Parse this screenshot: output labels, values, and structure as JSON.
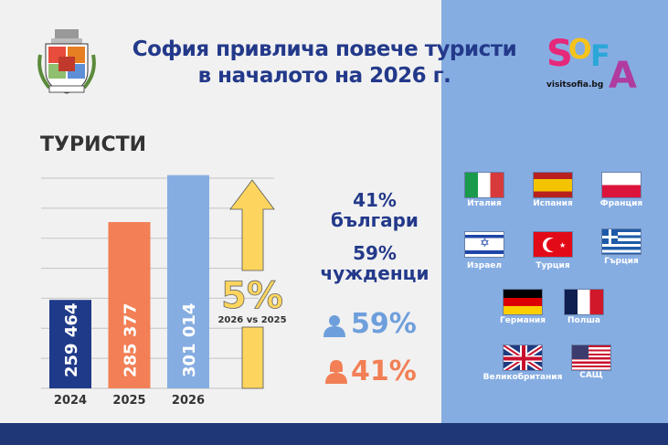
{
  "header": {
    "title_line1": "София привлича повече туристи",
    "title_line2": "в началото на 2026 г.",
    "logo_text": "SOFIA",
    "logo_url": "visitsofia.bg"
  },
  "section_title": "ТУРИСТИ",
  "chart_data": {
    "type": "bar",
    "categories": [
      "2024",
      "2025",
      "2026"
    ],
    "values": [
      259464,
      285377,
      301014
    ],
    "value_labels": [
      "259 464",
      "285 377",
      "301 014"
    ],
    "colors": [
      "#1f3a88",
      "#f27f55",
      "#86ade2"
    ],
    "ylim": [
      230000,
      300000
    ],
    "grid": true,
    "title": "",
    "xlabel": "",
    "ylabel": ""
  },
  "growth": {
    "value": "5%",
    "label": "2026 vs 2025",
    "color": "#fdd55e"
  },
  "stats": {
    "bulgarians_pct": "41%",
    "bulgarians_label": "българи",
    "foreigners_pct": "59%",
    "foreigners_label": "чужденци",
    "male_pct": "59%",
    "female_pct": "41%",
    "male_color": "#6e9fdc",
    "female_color": "#f27f55"
  },
  "countries": [
    "Италия",
    "Испания",
    "Франция",
    "Израел",
    "Турция",
    "Гърция",
    "Германия",
    "Полша",
    "Великобритания",
    "САЩ"
  ]
}
